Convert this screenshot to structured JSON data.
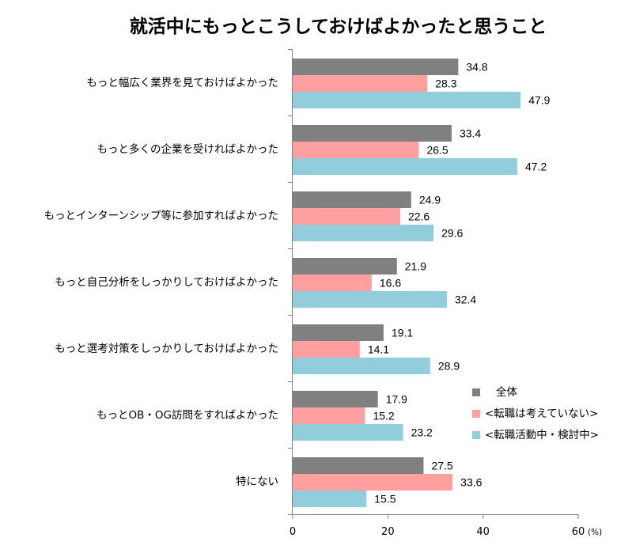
{
  "chart_data": {
    "type": "bar",
    "orientation": "horizontal",
    "title": "就活中にもっとこうしておけばよかったと思うこと",
    "xlabel": "",
    "ylabel": "",
    "unit_label": "(%)",
    "xlim": [
      0,
      60
    ],
    "xticks": [
      0,
      20,
      40,
      60
    ],
    "grid": false,
    "legend_position": "right-lower",
    "categories": [
      "もっと幅広く業界を見ておけばよかった",
      "もっと多くの企業を受ければよかった",
      "もっとインターンシップ等に参加すればよかった",
      "もっと自己分析をしっかりしておけばよかった",
      "もっと選考対策をしっかりしておけばよかった",
      "もっとOB・OG訪問をすればよかった",
      "特にない"
    ],
    "series": [
      {
        "name": "全体",
        "legend_label": "全体",
        "color": "#808080",
        "values": [
          34.8,
          33.4,
          24.9,
          21.9,
          19.1,
          17.9,
          27.5
        ]
      },
      {
        "name": "転職は考えていない",
        "legend_label": "<転職は考えていない>",
        "color": "#FF9F9F",
        "values": [
          28.3,
          26.5,
          22.6,
          16.6,
          14.1,
          15.2,
          33.6
        ]
      },
      {
        "name": "転職活動中・検討中",
        "legend_label": "<転職活動中・検討中>",
        "color": "#92CDDC",
        "values": [
          47.9,
          47.2,
          29.6,
          32.4,
          28.9,
          23.2,
          15.5
        ]
      }
    ]
  }
}
